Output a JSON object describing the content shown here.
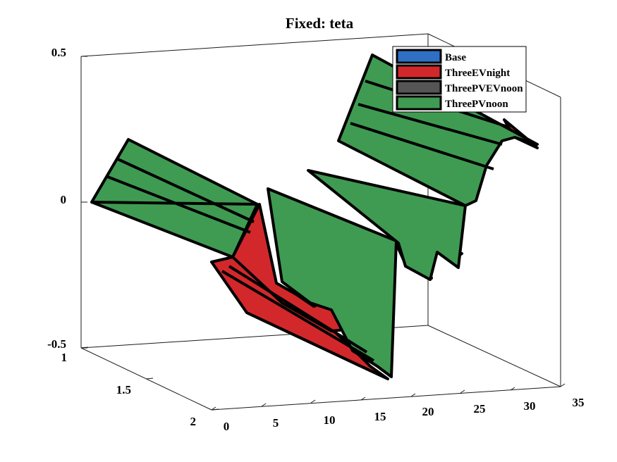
{
  "chart_data": {
    "type": "ribbon3d",
    "title": "Fixed: teta",
    "x_ticks": [
      "0",
      "5",
      "10",
      "15",
      "20",
      "25",
      "30",
      "35"
    ],
    "y_ticks": [
      "1",
      "1.5",
      "2"
    ],
    "z_ticks": [
      "0.5",
      "0",
      "-0.5"
    ],
    "legend": {
      "placement": "top-right",
      "entries": [
        {
          "name": "Base",
          "color": "#2f6fc4"
        },
        {
          "name": "ThreeEVnight",
          "color": "#d3282b"
        },
        {
          "name": "ThreePVEVnoon",
          "color": "#555555"
        },
        {
          "name": "ThreePVnoon",
          "color": "#3f9b52"
        }
      ]
    },
    "colors": {
      "red_ribbon": "#d3282b",
      "green_ribbon": "#3f9b52"
    }
  }
}
